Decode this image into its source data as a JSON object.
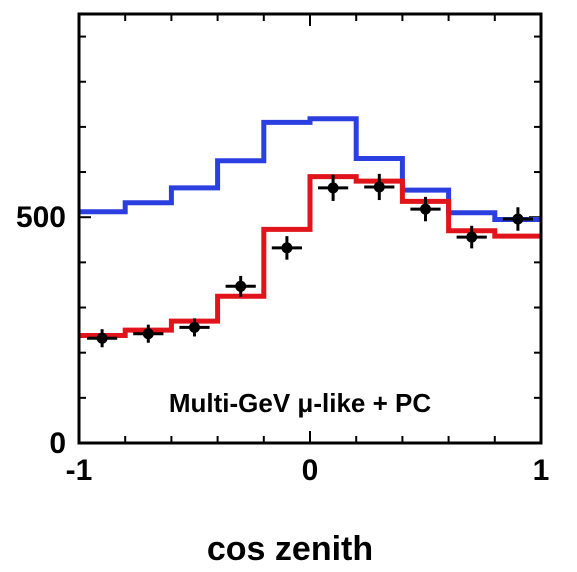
{
  "chart_data": {
    "type": "line",
    "annotation": "Multi-GeV μ-like + PC",
    "xlabel": "cos zenith",
    "ylabel": "",
    "xlim": [
      -1,
      1
    ],
    "ylim": [
      0,
      950
    ],
    "x_ticks": [
      {
        "value": -1,
        "label": "-1"
      },
      {
        "value": 0,
        "label": "0"
      },
      {
        "value": 1,
        "label": "1"
      }
    ],
    "y_ticks": [
      {
        "value": 0,
        "label": "0"
      },
      {
        "value": 500,
        "label": "500"
      }
    ],
    "bin_edges": [
      -1.0,
      -0.8,
      -0.6,
      -0.4,
      -0.2,
      0.0,
      0.2,
      0.4,
      0.6,
      0.8,
      1.0
    ],
    "series": [
      {
        "style": "step",
        "color": "#2b3fe0",
        "values": [
          512,
          532,
          565,
          625,
          710,
          718,
          630,
          560,
          510,
          495
        ]
      },
      {
        "style": "step",
        "color": "#e0141a",
        "values": [
          238,
          250,
          270,
          325,
          473,
          590,
          580,
          535,
          470,
          458
        ]
      },
      {
        "style": "points",
        "color": "#000000",
        "x": [
          -0.9,
          -0.7,
          -0.5,
          -0.3,
          -0.1,
          0.1,
          0.3,
          0.5,
          0.7,
          0.9
        ],
        "values": [
          232,
          242,
          256,
          347,
          432,
          565,
          567,
          518,
          456,
          496
        ],
        "errors": [
          20,
          20,
          20,
          23,
          26,
          29,
          29,
          27,
          25,
          26
        ]
      }
    ]
  }
}
